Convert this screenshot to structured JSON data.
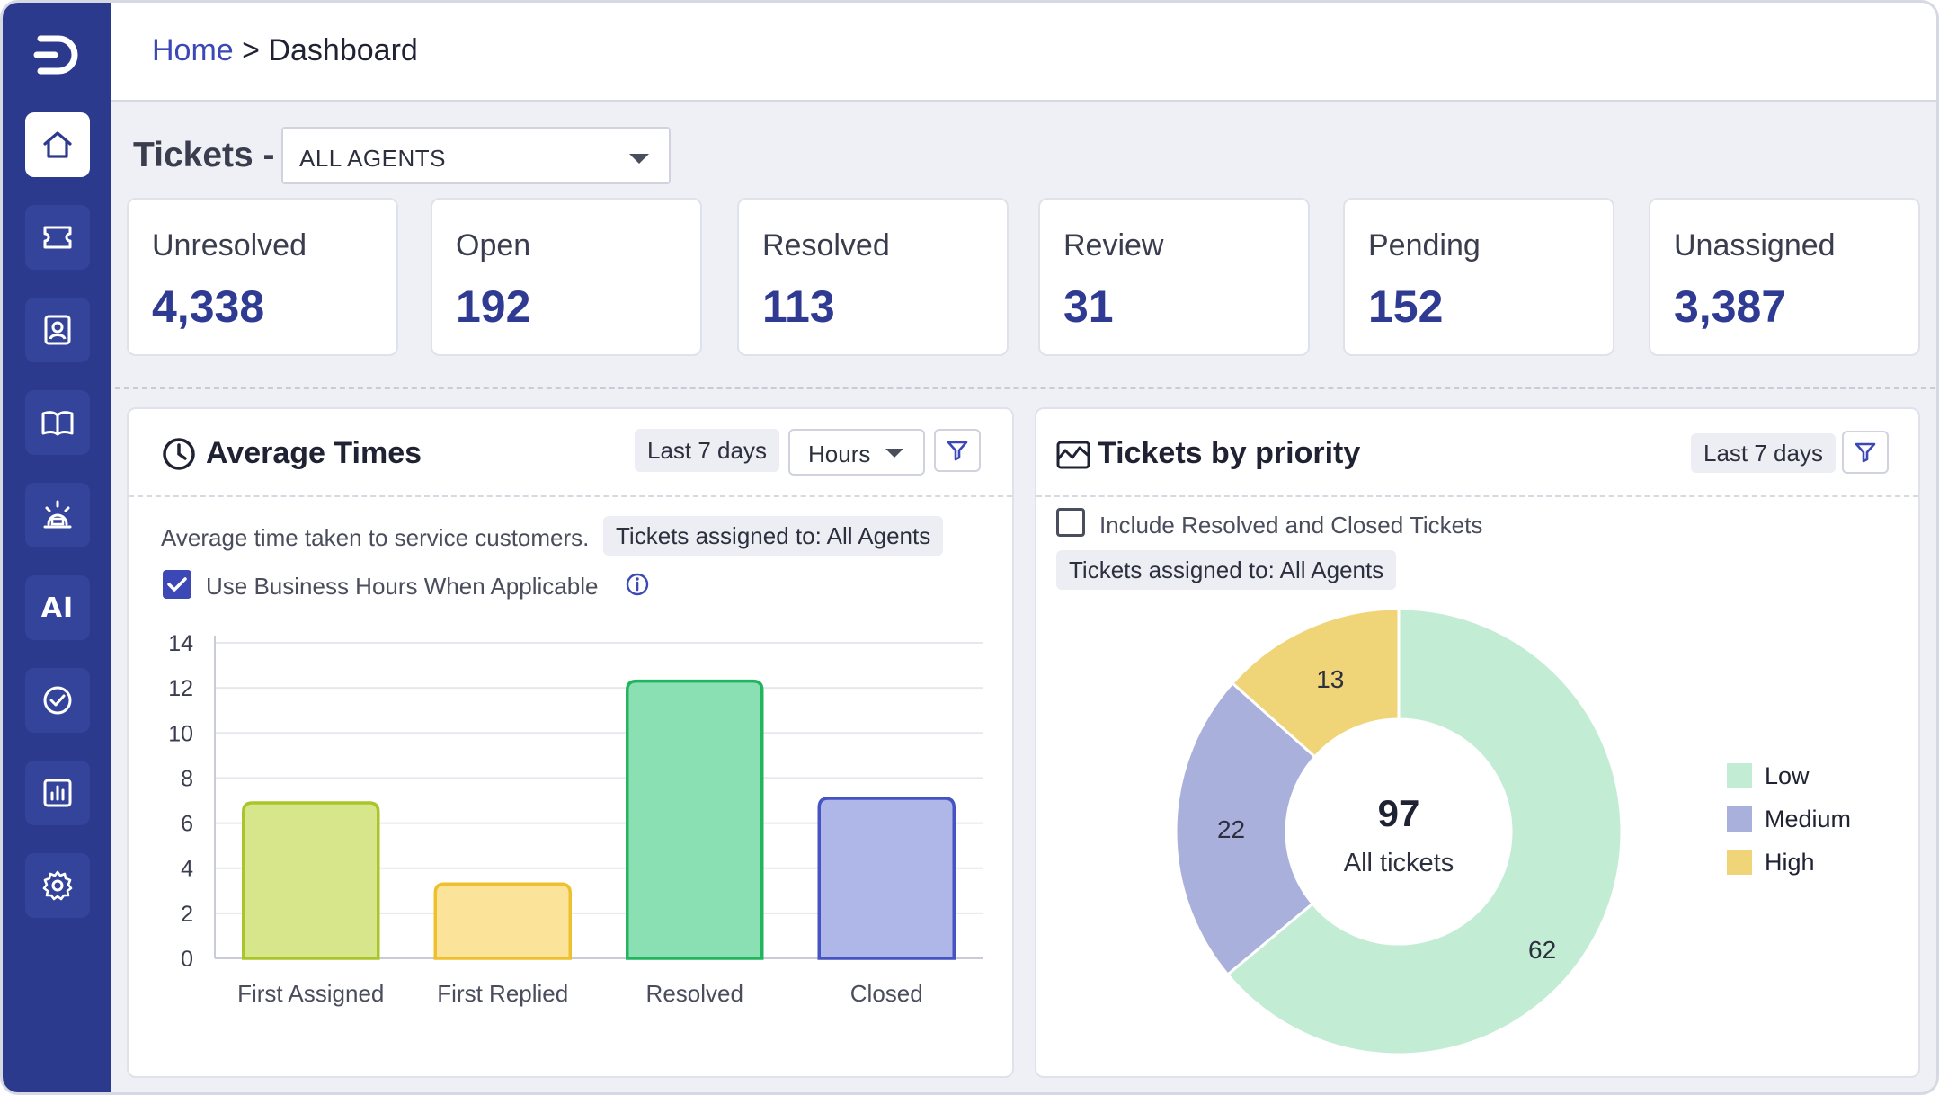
{
  "breadcrumb": {
    "home": "Home",
    "separator": ">",
    "current": "Dashboard"
  },
  "sidebar": {
    "items": [
      {
        "name": "home-icon",
        "active": true
      },
      {
        "name": "ticket-icon",
        "active": false
      },
      {
        "name": "contacts-icon",
        "active": false
      },
      {
        "name": "knowledge-base-icon",
        "active": false
      },
      {
        "name": "alerts-icon",
        "active": false
      },
      {
        "name": "ai-icon",
        "label": "AI",
        "active": false
      },
      {
        "name": "tasks-icon",
        "active": false
      },
      {
        "name": "reports-icon",
        "active": false
      },
      {
        "name": "settings-icon",
        "active": false
      }
    ]
  },
  "tickets": {
    "title": "Tickets -",
    "agent_filter": "ALL AGENTS",
    "stats": [
      {
        "label": "Unresolved",
        "value": "4,338"
      },
      {
        "label": "Open",
        "value": "192"
      },
      {
        "label": "Resolved",
        "value": "113"
      },
      {
        "label": "Review",
        "value": "31"
      },
      {
        "label": "Pending",
        "value": "152"
      },
      {
        "label": "Unassigned",
        "value": "3,387"
      }
    ]
  },
  "average_times": {
    "title": "Average Times",
    "range_chip": "Last 7 days",
    "unit_select": "Hours",
    "description": "Average time taken to service customers.",
    "assigned_chip": "Tickets assigned to: All Agents",
    "business_hours_label": "Use Business Hours When Applicable",
    "business_hours_checked": true
  },
  "tickets_by_priority": {
    "title": "Tickets by priority",
    "range_chip": "Last 7 days",
    "include_label": "Include Resolved and Closed Tickets",
    "include_checked": false,
    "assigned_chip": "Tickets assigned to: All Agents",
    "center_value": "97",
    "center_label": "All tickets"
  },
  "chart_data": [
    {
      "type": "bar",
      "categories": [
        "First Assigned",
        "First Replied",
        "Resolved",
        "Closed"
      ],
      "values": [
        6.9,
        3.3,
        12.3,
        7.1
      ],
      "colors": [
        {
          "fill": "#d7e68b",
          "stroke": "#a9c52a"
        },
        {
          "fill": "#fbe39a",
          "stroke": "#eec02e"
        },
        {
          "fill": "#8ae0b2",
          "stroke": "#22b45e"
        },
        {
          "fill": "#afb6e8",
          "stroke": "#4653c2"
        }
      ],
      "yticks": [
        "0",
        "2",
        "4",
        "6",
        "8",
        "10",
        "12",
        "14"
      ],
      "ylim": [
        0,
        14
      ],
      "grid": true
    },
    {
      "type": "pie",
      "donut": true,
      "labels": [
        "Low",
        "Medium",
        "High"
      ],
      "values": [
        62,
        22,
        13
      ],
      "value_labels": [
        "62",
        "22",
        "13"
      ],
      "colors": [
        "#c3ecd4",
        "#aab0dc",
        "#f0d478"
      ],
      "legend": "right"
    }
  ]
}
